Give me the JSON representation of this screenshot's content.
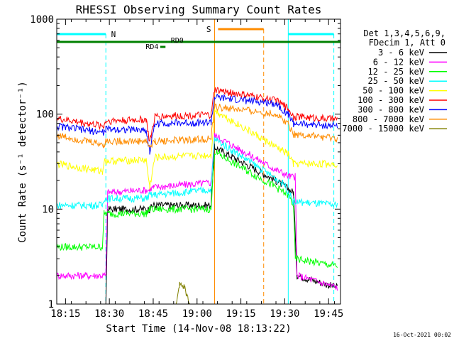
{
  "chart_data": {
    "type": "line",
    "title": "RHESSI Observing Summary Count Rates",
    "xlabel": "Start Time (14-Nov-08 18:13:22)",
    "ylabel": "Count Rate (s⁻¹ detector⁻¹)",
    "ylim": [
      1,
      1000
    ],
    "yscale": "log",
    "xlim_minutes": [
      18.2,
      19.818
    ],
    "xticks": [
      {
        "label": "18:15",
        "t": 18.25
      },
      {
        "label": "18:30",
        "t": 18.5
      },
      {
        "label": "18:45",
        "t": 18.75
      },
      {
        "label": "19:00",
        "t": 19.0
      },
      {
        "label": "19:15",
        "t": 19.25
      },
      {
        "label": "19:30",
        "t": 19.5
      },
      {
        "label": "19:45",
        "t": 19.75
      }
    ],
    "yticks": [
      {
        "label": "1",
        "v": 1
      },
      {
        "label": "10",
        "v": 10
      },
      {
        "label": "100",
        "v": 100
      },
      {
        "label": "1000",
        "v": 1000
      }
    ],
    "legend_header": [
      "Det 1,3,4,5,6,9,",
      "FDecim 1, Att 0"
    ],
    "series": [
      {
        "name": "3 - 6 keV",
        "color": "#000000",
        "points": [
          [
            18.2,
            0.9
          ],
          [
            18.48,
            0.9
          ],
          [
            18.49,
            10
          ],
          [
            18.73,
            10
          ],
          [
            18.75,
            11
          ],
          [
            19.08,
            11
          ],
          [
            19.1,
            45
          ],
          [
            19.45,
            20
          ],
          [
            19.55,
            15
          ],
          [
            19.57,
            2
          ],
          [
            19.8,
            1.5
          ]
        ]
      },
      {
        "name": "6 - 12 keV",
        "color": "#ff00ff",
        "points": [
          [
            18.2,
            2
          ],
          [
            18.48,
            2
          ],
          [
            18.49,
            15
          ],
          [
            18.73,
            16
          ],
          [
            18.75,
            17
          ],
          [
            19.08,
            19
          ],
          [
            19.1,
            60
          ],
          [
            19.45,
            26
          ],
          [
            19.53,
            22
          ],
          [
            19.56,
            22
          ],
          [
            19.57,
            2
          ],
          [
            19.8,
            1.5
          ]
        ]
      },
      {
        "name": "12 - 25 keV",
        "color": "#00ff00",
        "points": [
          [
            18.2,
            4
          ],
          [
            18.46,
            4
          ],
          [
            18.47,
            9
          ],
          [
            18.71,
            9
          ],
          [
            18.73,
            10
          ],
          [
            19.08,
            10
          ],
          [
            19.1,
            40
          ],
          [
            19.45,
            17
          ],
          [
            19.52,
            14
          ],
          [
            19.55,
            11
          ],
          [
            19.56,
            3
          ],
          [
            19.8,
            2.5
          ]
        ]
      },
      {
        "name": "25 - 50 keV",
        "color": "#00ffff",
        "points": [
          [
            18.2,
            11
          ],
          [
            18.46,
            11
          ],
          [
            18.47,
            13
          ],
          [
            18.71,
            13
          ],
          [
            18.73,
            14
          ],
          [
            19.08,
            16
          ],
          [
            19.1,
            55
          ],
          [
            19.45,
            21
          ],
          [
            19.5,
            18
          ],
          [
            19.55,
            12
          ],
          [
            19.8,
            11
          ]
        ]
      },
      {
        "name": "50 - 100 keV",
        "color": "#ffff00",
        "points": [
          [
            18.2,
            30
          ],
          [
            18.46,
            25
          ],
          [
            18.47,
            32
          ],
          [
            18.71,
            33
          ],
          [
            18.73,
            17
          ],
          [
            18.76,
            35
          ],
          [
            19.08,
            37
          ],
          [
            19.1,
            110
          ],
          [
            19.45,
            45
          ],
          [
            19.52,
            38
          ],
          [
            19.55,
            30
          ],
          [
            19.8,
            30
          ]
        ]
      },
      {
        "name": "100 - 300 keV",
        "color": "#ff0000",
        "points": [
          [
            18.2,
            90
          ],
          [
            18.47,
            75
          ],
          [
            18.48,
            85
          ],
          [
            18.71,
            88
          ],
          [
            18.73,
            50
          ],
          [
            18.76,
            95
          ],
          [
            19.08,
            98
          ],
          [
            19.1,
            180
          ],
          [
            19.45,
            140
          ],
          [
            19.52,
            115
          ],
          [
            19.55,
            95
          ],
          [
            19.8,
            88
          ]
        ]
      },
      {
        "name": "300 - 800 keV",
        "color": "#0000ff",
        "points": [
          [
            18.2,
            75
          ],
          [
            18.47,
            64
          ],
          [
            18.48,
            70
          ],
          [
            18.71,
            68
          ],
          [
            18.73,
            40
          ],
          [
            18.76,
            80
          ],
          [
            19.08,
            82
          ],
          [
            19.1,
            150
          ],
          [
            19.45,
            130
          ],
          [
            19.52,
            100
          ],
          [
            19.55,
            80
          ],
          [
            19.8,
            75
          ]
        ]
      },
      {
        "name": "800 - 7000 keV",
        "color": "#ff8c00",
        "points": [
          [
            18.2,
            60
          ],
          [
            18.47,
            48
          ],
          [
            18.48,
            52
          ],
          [
            18.71,
            52
          ],
          [
            18.73,
            45
          ],
          [
            18.76,
            52
          ],
          [
            19.08,
            55
          ],
          [
            19.1,
            120
          ],
          [
            19.45,
            100
          ],
          [
            19.52,
            80
          ],
          [
            19.55,
            62
          ],
          [
            19.8,
            55
          ]
        ]
      },
      {
        "name": "7000 - 15000 keV",
        "color": "#808000",
        "points": [
          [
            18.2,
            0.9
          ],
          [
            18.88,
            0.9
          ],
          [
            18.9,
            1.6
          ],
          [
            18.93,
            1.5
          ],
          [
            18.96,
            0.9
          ],
          [
            19.8,
            0.9
          ]
        ]
      }
    ],
    "annotations": [
      {
        "label": "N",
        "color": "#00ffff"
      },
      {
        "label": "S",
        "color": "#ff8c00"
      },
      {
        "label": "RD0",
        "color": "#008000"
      },
      {
        "label": "RD4",
        "color": "#008000"
      }
    ],
    "footer": "16-Oct-2021 00:02"
  }
}
